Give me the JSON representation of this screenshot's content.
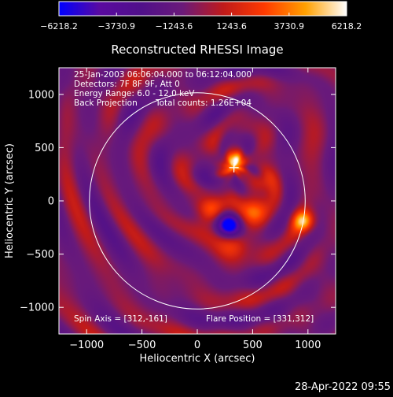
{
  "chart_data": {
    "type": "heatmap",
    "title": "Reconstructed RHESSI Image",
    "xlabel": "Heliocentric X (arcsec)",
    "ylabel": "Heliocentric Y (arcsec)",
    "xlim": [
      -1250,
      1250
    ],
    "ylim": [
      -1250,
      1250
    ],
    "x_ticks": [
      -1000,
      -500,
      0,
      500,
      1000
    ],
    "y_ticks": [
      -1000,
      -500,
      0,
      500,
      1000
    ],
    "x_tick_labels": [
      "−1000",
      "−500",
      "0",
      "500",
      "1000"
    ],
    "y_tick_labels": [
      "−1000",
      "−500",
      "0",
      "500",
      "1000"
    ],
    "colorbar": {
      "min": -6218.2,
      "max": 6218.2,
      "ticks": [
        -6218.2,
        -3730.9,
        -1243.6,
        1243.6,
        3730.9,
        6218.2
      ],
      "tick_labels": [
        "−6218.2",
        "−3730.9",
        "−1243.6",
        "1243.6",
        "3730.9",
        "6218.2"
      ],
      "colors": [
        "#0000ff",
        "#5a0aa0",
        "#50108a",
        "#6a1a7a",
        "#c01a1a",
        "#ff3a00",
        "#ffa000",
        "#ffffff"
      ]
    },
    "solar_disk": {
      "center": [
        0,
        0
      ],
      "radius_arcsec": 975
    },
    "flare_marker": {
      "x": 331,
      "y": 312,
      "symbol": "+"
    },
    "sources": [
      {
        "x": 340,
        "y": 370,
        "value": 6218.2,
        "sigma": 70
      },
      {
        "x": 960,
        "y": -190,
        "value": 5000,
        "sigma": 70
      },
      {
        "x": 290,
        "y": -230,
        "value": -6218.2,
        "sigma": 75
      },
      {
        "x": 130,
        "y": -100,
        "value": 4000,
        "sigma": 85
      },
      {
        "x": 520,
        "y": -110,
        "value": 3800,
        "sigma": 95
      },
      {
        "x": 570,
        "y": 180,
        "value": 2800,
        "sigma": 75
      },
      {
        "x": 320,
        "y": -420,
        "value": 2600,
        "sigma": 100
      }
    ],
    "annotations": {
      "time_range": "25-Jan-2003 06:06:04.000 to 06:12:04.000",
      "detectors": "Detectors: 7F 8F 9F, Att 0",
      "energy": "Energy Range: 6.0 - 12.0 keV",
      "method": "Back Projection",
      "total_counts": "Total counts: 1.26E+04",
      "spin_axis": "Spin Axis = [312,-161]",
      "flare_position": "Flare Position = [331,312]"
    }
  },
  "footer": {
    "timestamp": "28-Apr-2022 09:55"
  }
}
